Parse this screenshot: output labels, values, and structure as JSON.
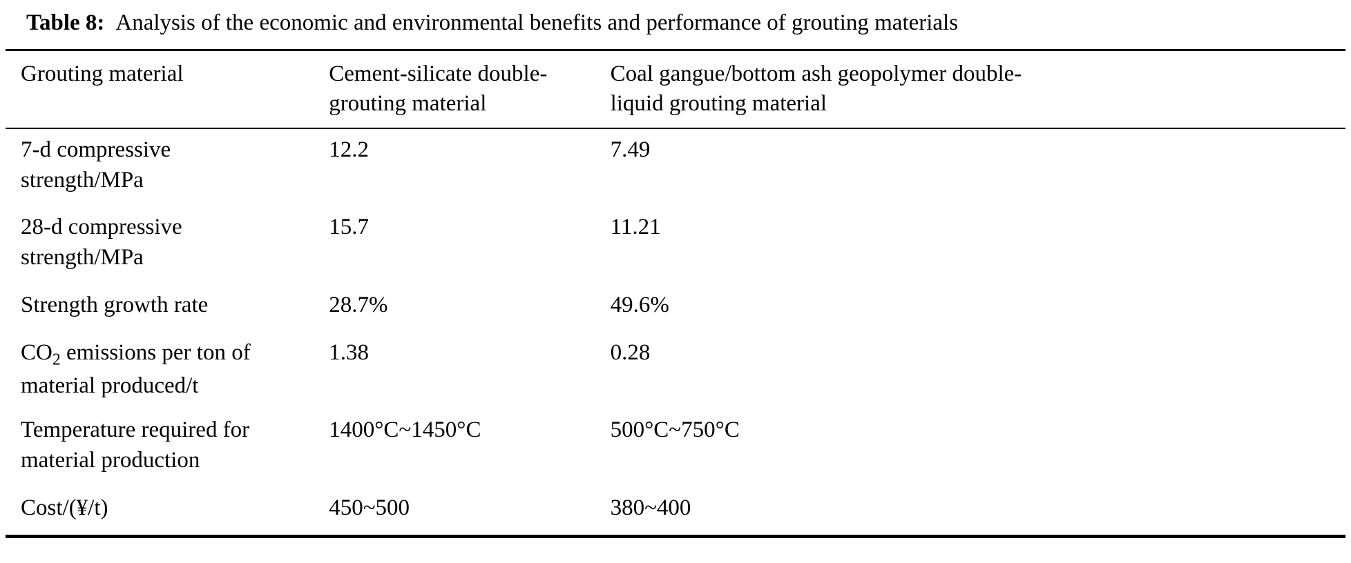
{
  "caption": {
    "label": "Table 8:",
    "text": "Analysis of the economic and environmental benefits and performance of grouting materials"
  },
  "table": {
    "col_headers": [
      "Grouting material",
      "Cement-silicate double-grouting material",
      "Coal gangue/bottom ash geopolymer double-liquid grouting material"
    ],
    "rows": [
      {
        "label": "7-d compressive strength/MPa",
        "values": [
          "12.2",
          "7.49"
        ]
      },
      {
        "label": "28-d compressive strength/MPa",
        "values": [
          "15.7",
          "11.21"
        ]
      },
      {
        "label": "Strength growth rate",
        "values": [
          "28.7%",
          "49.6%"
        ]
      },
      {
        "label": "CO",
        "label_sub": "2",
        "label_rest": " emissions per ton of material produced/t",
        "values": [
          "1.38",
          "0.28"
        ]
      },
      {
        "label": "Temperature required for material production",
        "values": [
          "1400°C~1450°C",
          "500°C~750°C"
        ]
      },
      {
        "label": "Cost/(¥/t)",
        "values": [
          "450~500",
          "380~400"
        ]
      }
    ]
  }
}
